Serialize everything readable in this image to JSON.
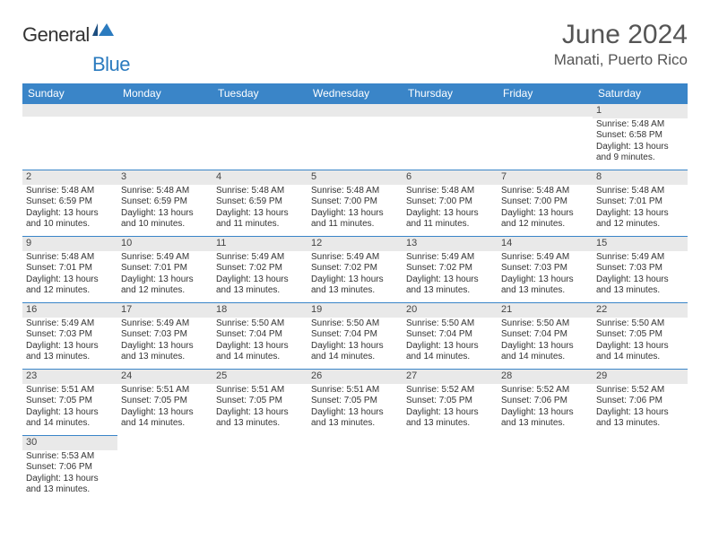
{
  "brand": {
    "part1": "General",
    "part2": "Blue"
  },
  "title": "June 2024",
  "location": "Manati, Puerto Rico",
  "colors": {
    "header_bg": "#3a85c8",
    "header_text": "#ffffff",
    "daynum_bg": "#e9e9e9",
    "cell_border": "#3a85c8",
    "text": "#333333",
    "brand_blue": "#2b7bbf"
  },
  "weekdays": [
    "Sunday",
    "Monday",
    "Tuesday",
    "Wednesday",
    "Thursday",
    "Friday",
    "Saturday"
  ],
  "weeks": [
    [
      null,
      null,
      null,
      null,
      null,
      null,
      {
        "d": "1",
        "sr": "5:48 AM",
        "ss": "6:58 PM",
        "dl": "13 hours and 9 minutes."
      }
    ],
    [
      {
        "d": "2",
        "sr": "5:48 AM",
        "ss": "6:59 PM",
        "dl": "13 hours and 10 minutes."
      },
      {
        "d": "3",
        "sr": "5:48 AM",
        "ss": "6:59 PM",
        "dl": "13 hours and 10 minutes."
      },
      {
        "d": "4",
        "sr": "5:48 AM",
        "ss": "6:59 PM",
        "dl": "13 hours and 11 minutes."
      },
      {
        "d": "5",
        "sr": "5:48 AM",
        "ss": "7:00 PM",
        "dl": "13 hours and 11 minutes."
      },
      {
        "d": "6",
        "sr": "5:48 AM",
        "ss": "7:00 PM",
        "dl": "13 hours and 11 minutes."
      },
      {
        "d": "7",
        "sr": "5:48 AM",
        "ss": "7:00 PM",
        "dl": "13 hours and 12 minutes."
      },
      {
        "d": "8",
        "sr": "5:48 AM",
        "ss": "7:01 PM",
        "dl": "13 hours and 12 minutes."
      }
    ],
    [
      {
        "d": "9",
        "sr": "5:48 AM",
        "ss": "7:01 PM",
        "dl": "13 hours and 12 minutes."
      },
      {
        "d": "10",
        "sr": "5:49 AM",
        "ss": "7:01 PM",
        "dl": "13 hours and 12 minutes."
      },
      {
        "d": "11",
        "sr": "5:49 AM",
        "ss": "7:02 PM",
        "dl": "13 hours and 13 minutes."
      },
      {
        "d": "12",
        "sr": "5:49 AM",
        "ss": "7:02 PM",
        "dl": "13 hours and 13 minutes."
      },
      {
        "d": "13",
        "sr": "5:49 AM",
        "ss": "7:02 PM",
        "dl": "13 hours and 13 minutes."
      },
      {
        "d": "14",
        "sr": "5:49 AM",
        "ss": "7:03 PM",
        "dl": "13 hours and 13 minutes."
      },
      {
        "d": "15",
        "sr": "5:49 AM",
        "ss": "7:03 PM",
        "dl": "13 hours and 13 minutes."
      }
    ],
    [
      {
        "d": "16",
        "sr": "5:49 AM",
        "ss": "7:03 PM",
        "dl": "13 hours and 13 minutes."
      },
      {
        "d": "17",
        "sr": "5:49 AM",
        "ss": "7:03 PM",
        "dl": "13 hours and 13 minutes."
      },
      {
        "d": "18",
        "sr": "5:50 AM",
        "ss": "7:04 PM",
        "dl": "13 hours and 14 minutes."
      },
      {
        "d": "19",
        "sr": "5:50 AM",
        "ss": "7:04 PM",
        "dl": "13 hours and 14 minutes."
      },
      {
        "d": "20",
        "sr": "5:50 AM",
        "ss": "7:04 PM",
        "dl": "13 hours and 14 minutes."
      },
      {
        "d": "21",
        "sr": "5:50 AM",
        "ss": "7:04 PM",
        "dl": "13 hours and 14 minutes."
      },
      {
        "d": "22",
        "sr": "5:50 AM",
        "ss": "7:05 PM",
        "dl": "13 hours and 14 minutes."
      }
    ],
    [
      {
        "d": "23",
        "sr": "5:51 AM",
        "ss": "7:05 PM",
        "dl": "13 hours and 14 minutes."
      },
      {
        "d": "24",
        "sr": "5:51 AM",
        "ss": "7:05 PM",
        "dl": "13 hours and 14 minutes."
      },
      {
        "d": "25",
        "sr": "5:51 AM",
        "ss": "7:05 PM",
        "dl": "13 hours and 13 minutes."
      },
      {
        "d": "26",
        "sr": "5:51 AM",
        "ss": "7:05 PM",
        "dl": "13 hours and 13 minutes."
      },
      {
        "d": "27",
        "sr": "5:52 AM",
        "ss": "7:05 PM",
        "dl": "13 hours and 13 minutes."
      },
      {
        "d": "28",
        "sr": "5:52 AM",
        "ss": "7:06 PM",
        "dl": "13 hours and 13 minutes."
      },
      {
        "d": "29",
        "sr": "5:52 AM",
        "ss": "7:06 PM",
        "dl": "13 hours and 13 minutes."
      }
    ],
    [
      {
        "d": "30",
        "sr": "5:53 AM",
        "ss": "7:06 PM",
        "dl": "13 hours and 13 minutes."
      },
      null,
      null,
      null,
      null,
      null,
      null
    ]
  ],
  "labels": {
    "sunrise": "Sunrise:",
    "sunset": "Sunset:",
    "daylight": "Daylight:"
  }
}
